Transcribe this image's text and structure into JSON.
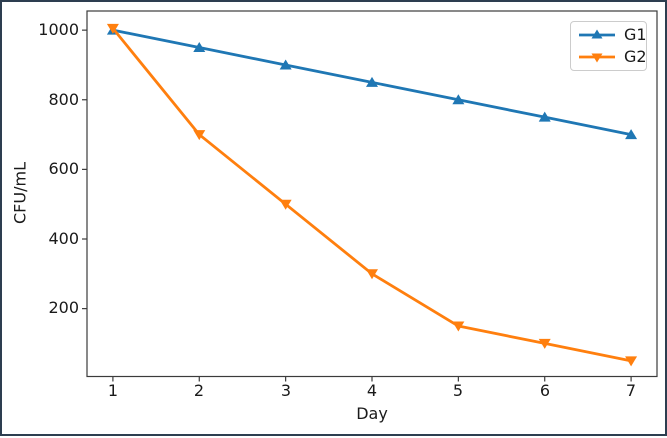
{
  "window": {
    "frame_color": "#2d3e50",
    "background": "#ffffff"
  },
  "chart_data": {
    "type": "line",
    "title": "",
    "xlabel": "Day",
    "ylabel": "CFU/mL",
    "x": [
      1,
      2,
      3,
      4,
      5,
      6,
      7
    ],
    "series": [
      {
        "name": "G1",
        "color": "#1f77b4",
        "marker": "triangle-up",
        "values": [
          1000,
          950,
          900,
          850,
          800,
          750,
          700
        ]
      },
      {
        "name": "G2",
        "color": "#ff7f0e",
        "marker": "triangle-down",
        "values": [
          1005,
          700,
          500,
          300,
          150,
          100,
          50
        ]
      }
    ],
    "xlim": [
      0.7,
      7.3
    ],
    "ylim": [
      5,
      1055
    ],
    "xticks": [
      1,
      2,
      3,
      4,
      5,
      6,
      7
    ],
    "yticks": [
      200,
      400,
      600,
      800,
      1000
    ],
    "grid": false,
    "legend_position": "upper right",
    "legend_labels": [
      "G1",
      "G2"
    ],
    "spine_color": "#3b3b3b",
    "tick_label_color": "#1a1a1a"
  }
}
